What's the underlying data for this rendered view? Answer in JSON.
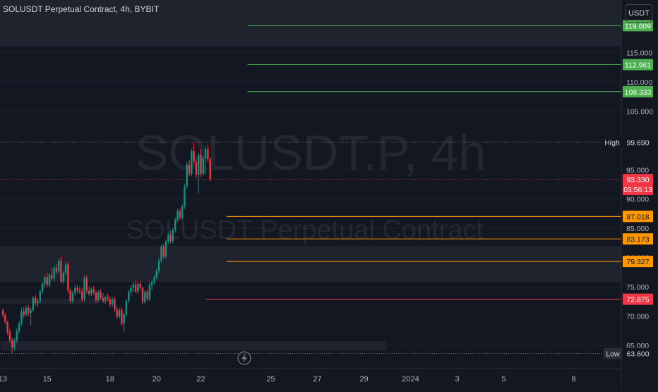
{
  "header": {
    "title": "SOLUSDT Perpetual Contract, 4h, BYBIT"
  },
  "currency_button": "USDT",
  "watermark": {
    "symbol": "SOLUSDT.P, 4h",
    "description": "SOLUSDT Perpetual Contract"
  },
  "chart_data": {
    "type": "candlestick",
    "symbol": "SOLUSDT.P",
    "interval": "4h",
    "exchange": "BYBIT",
    "y_axis": {
      "range": [
        61,
        124
      ],
      "ticks": [
        "65.000",
        "70.000",
        "75.000",
        "80.000",
        "85.000",
        "90.000",
        "95.000",
        "100.000",
        "105.000",
        "110.000",
        "115.000"
      ],
      "tick_values": [
        65,
        70,
        75,
        80,
        85,
        90,
        95,
        100,
        105,
        110,
        115
      ]
    },
    "x_axis": {
      "ticks": [
        "13",
        "15",
        "18",
        "20",
        "22",
        "25",
        "27",
        "29",
        "2024",
        "3",
        "5",
        "8"
      ],
      "tick_index": [
        0,
        19,
        46,
        66,
        85,
        115,
        135,
        155,
        175,
        195,
        215,
        245
      ]
    },
    "last_price": {
      "value": "93.330",
      "countdown": "03:56:13",
      "numeric": 93.33,
      "color": "#f23645"
    },
    "high": {
      "label": "High",
      "value": "99.690",
      "numeric": 99.69
    },
    "low": {
      "label": "Low",
      "value": "63.600",
      "numeric": 63.6
    },
    "levels": [
      {
        "value": "119.609",
        "numeric": 119.609,
        "color": "#4caf50",
        "start_index": 105
      },
      {
        "value": "112.961",
        "numeric": 112.961,
        "color": "#4caf50",
        "start_index": 105
      },
      {
        "value": "108.333",
        "numeric": 108.333,
        "color": "#4caf50",
        "start_index": 105
      },
      {
        "value": "87.018",
        "numeric": 87.018,
        "color": "#ff9800",
        "start_index": 96
      },
      {
        "value": "83.173",
        "numeric": 83.173,
        "color": "#ff9800",
        "start_index": 96
      },
      {
        "value": "79.327",
        "numeric": 79.327,
        "color": "#ff9800",
        "start_index": 96
      },
      {
        "value": "72.875",
        "numeric": 72.875,
        "color": "#f23645",
        "start_index": 87
      }
    ],
    "zones": [
      {
        "top": 124,
        "bottom": 116.1,
        "start_index": 0,
        "end_index": null
      },
      {
        "top": 82.0,
        "bottom": 75.8,
        "start_index": 0,
        "end_index": null
      },
      {
        "top": 73.0,
        "bottom": 72.1,
        "start_index": 0,
        "end_index": 41
      },
      {
        "top": 65.7,
        "bottom": 64.1,
        "start_index": 1,
        "end_index": 164
      }
    ],
    "candles": [
      [
        71.0,
        71.3,
        69.8,
        70.2
      ],
      [
        70.2,
        70.6,
        68.6,
        69.0
      ],
      [
        69.0,
        69.2,
        66.8,
        67.3
      ],
      [
        67.3,
        67.8,
        65.4,
        65.9
      ],
      [
        65.9,
        66.3,
        63.6,
        64.6
      ],
      [
        64.6,
        66.2,
        64.2,
        65.8
      ],
      [
        65.8,
        67.9,
        65.4,
        67.4
      ],
      [
        67.4,
        69.1,
        67.0,
        68.7
      ],
      [
        68.7,
        71.4,
        68.3,
        70.8
      ],
      [
        70.8,
        71.6,
        69.6,
        70.2
      ],
      [
        70.2,
        71.8,
        69.9,
        71.4
      ],
      [
        71.4,
        71.9,
        70.0,
        70.5
      ],
      [
        70.5,
        71.5,
        68.4,
        71.0
      ],
      [
        71.0,
        73.4,
        70.7,
        73.1
      ],
      [
        73.1,
        73.6,
        71.8,
        72.2
      ],
      [
        72.2,
        73.0,
        71.5,
        72.5
      ],
      [
        72.5,
        74.6,
        72.1,
        74.2
      ],
      [
        74.2,
        75.8,
        73.8,
        75.5
      ],
      [
        75.5,
        76.9,
        74.8,
        76.6
      ],
      [
        76.6,
        77.4,
        74.9,
        75.3
      ],
      [
        75.3,
        77.3,
        74.9,
        77.0
      ],
      [
        77.0,
        78.2,
        76.0,
        76.4
      ],
      [
        76.4,
        78.6,
        76.0,
        78.2
      ],
      [
        78.2,
        78.9,
        77.1,
        77.6
      ],
      [
        77.6,
        79.8,
        77.3,
        79.4
      ],
      [
        79.4,
        80.1,
        75.6,
        75.9
      ],
      [
        75.9,
        77.7,
        75.5,
        77.4
      ],
      [
        77.4,
        79.2,
        77.0,
        78.8
      ],
      [
        78.8,
        79.3,
        73.9,
        74.4
      ],
      [
        74.4,
        74.8,
        72.1,
        72.6
      ],
      [
        72.6,
        74.3,
        72.2,
        73.9
      ],
      [
        73.9,
        75.3,
        73.5,
        74.8
      ],
      [
        74.8,
        75.3,
        73.9,
        74.4
      ],
      [
        74.4,
        75.0,
        73.8,
        74.2
      ],
      [
        74.2,
        74.8,
        72.4,
        72.9
      ],
      [
        72.9,
        76.9,
        72.5,
        76.5
      ],
      [
        76.5,
        77.0,
        73.8,
        74.3
      ],
      [
        74.3,
        75.0,
        73.4,
        73.8
      ],
      [
        73.8,
        74.9,
        73.4,
        74.6
      ],
      [
        74.6,
        75.1,
        73.6,
        74.0
      ],
      [
        74.0,
        74.3,
        72.3,
        72.7
      ],
      [
        72.7,
        74.4,
        72.4,
        74.1
      ],
      [
        74.1,
        74.6,
        72.8,
        73.1
      ],
      [
        73.1,
        73.9,
        72.2,
        72.5
      ],
      [
        72.5,
        73.5,
        72.1,
        73.2
      ],
      [
        73.2,
        73.8,
        72.5,
        72.9
      ],
      [
        72.9,
        73.4,
        71.6,
        72.0
      ],
      [
        72.0,
        73.2,
        71.6,
        72.9
      ],
      [
        72.9,
        73.3,
        70.7,
        71.1
      ],
      [
        71.1,
        71.7,
        69.5,
        69.9
      ],
      [
        69.9,
        71.4,
        69.5,
        71.0
      ],
      [
        71.0,
        71.4,
        68.3,
        68.7
      ],
      [
        68.7,
        70.6,
        67.3,
        70.3
      ],
      [
        70.3,
        72.9,
        69.9,
        72.6
      ],
      [
        72.6,
        74.5,
        72.2,
        74.1
      ],
      [
        74.1,
        75.2,
        73.4,
        74.8
      ],
      [
        74.8,
        75.9,
        74.1,
        75.4
      ],
      [
        75.4,
        76.1,
        73.9,
        74.2
      ],
      [
        74.2,
        75.8,
        73.8,
        75.5
      ],
      [
        75.5,
        75.9,
        74.4,
        74.8
      ],
      [
        74.8,
        75.0,
        72.0,
        72.4
      ],
      [
        72.4,
        74.4,
        72.0,
        74.1
      ],
      [
        74.1,
        74.5,
        72.5,
        72.9
      ],
      [
        72.9,
        75.7,
        72.5,
        75.3
      ],
      [
        75.3,
        76.1,
        74.4,
        75.8
      ],
      [
        75.8,
        77.0,
        75.4,
        76.6
      ],
      [
        76.6,
        78.1,
        76.2,
        77.7
      ],
      [
        77.7,
        79.9,
        77.3,
        79.5
      ],
      [
        79.5,
        82.2,
        79.1,
        81.8
      ],
      [
        81.8,
        82.3,
        79.8,
        80.2
      ],
      [
        80.2,
        83.1,
        79.8,
        82.7
      ],
      [
        82.7,
        84.2,
        82.3,
        83.8
      ],
      [
        83.8,
        84.6,
        82.4,
        82.8
      ],
      [
        82.8,
        85.1,
        82.4,
        84.7
      ],
      [
        84.7,
        86.8,
        84.3,
        86.4
      ],
      [
        86.4,
        88.3,
        86.0,
        87.9
      ],
      [
        87.9,
        88.4,
        86.4,
        86.8
      ],
      [
        86.8,
        89.1,
        86.4,
        88.7
      ],
      [
        88.7,
        92.6,
        88.3,
        92.2
      ],
      [
        92.2,
        96.3,
        91.8,
        95.9
      ],
      [
        95.9,
        96.6,
        93.9,
        94.3
      ],
      [
        94.3,
        98.6,
        93.9,
        98.2
      ],
      [
        98.2,
        99.69,
        95.8,
        96.4
      ],
      [
        96.4,
        97.2,
        93.6,
        94.1
      ],
      [
        94.1,
        97.9,
        91.0,
        97.5
      ],
      [
        97.5,
        98.5,
        93.8,
        94.3
      ],
      [
        94.3,
        97.4,
        94.0,
        96.9
      ],
      [
        96.9,
        99.0,
        94.2,
        98.5
      ],
      [
        98.5,
        99.2,
        96.2,
        96.8
      ],
      [
        96.8,
        97.1,
        93.0,
        93.33
      ]
    ]
  }
}
